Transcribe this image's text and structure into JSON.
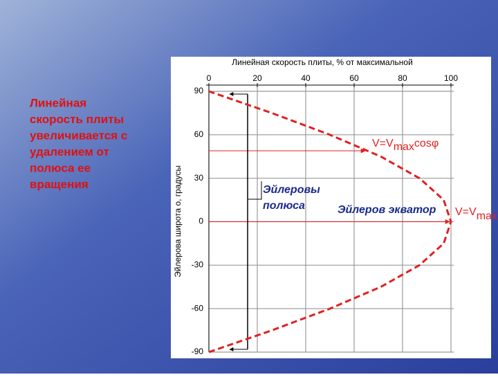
{
  "slide_text": {
    "lines": [
      "Линейная",
      "скорость плиты",
      "увеличивается с",
      "удалением от",
      "полюса ее",
      "вращения"
    ]
  },
  "chart_data": {
    "type": "line",
    "title": "Линейная скорость плиты, % от максимальной",
    "y_label": "Эйлерова широта о, градусы",
    "x": [
      0,
      26,
      50,
      71,
      87,
      97,
      100,
      97,
      87,
      71,
      50,
      26,
      0
    ],
    "series": [
      {
        "name": "V=Vmax cosφ",
        "color": "#e02020",
        "values": [
          -90,
          -75,
          -60,
          -45,
          -30,
          -15,
          0,
          15,
          30,
          45,
          60,
          75,
          90
        ]
      }
    ],
    "xlim": [
      0,
      100
    ],
    "xticks": [
      0,
      20,
      40,
      60,
      80,
      100
    ],
    "ylim": [
      -90,
      90
    ],
    "yticks": [
      -90,
      -60,
      -30,
      0,
      30,
      60,
      90
    ],
    "grid": true,
    "annotations": [
      [
        "V=V",
        "max",
        "cosφ"
      ],
      [
        "V=V",
        "max"
      ],
      [
        "Эйлеровы",
        "полюса"
      ],
      "Эйлеров экватор"
    ]
  }
}
